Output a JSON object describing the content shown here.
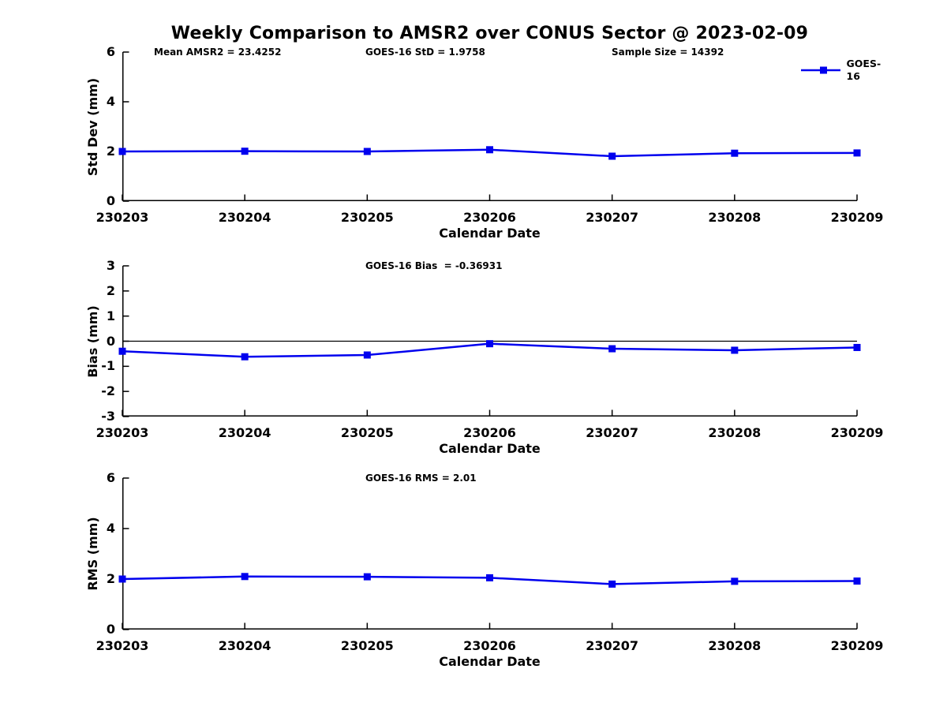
{
  "figure": {
    "title": "Weekly Comparison to AMSR2 over CONUS Sector @ 2023-02-09",
    "background": "#FFFFFF",
    "axis_color": "#000000",
    "legend": {
      "label": "GOES-16",
      "series_color": "#0000EE"
    }
  },
  "chart_data": [
    {
      "type": "line",
      "x": [
        "230203",
        "230204",
        "230205",
        "230206",
        "230207",
        "230208",
        "230209"
      ],
      "series": [
        {
          "name": "GOES-16",
          "values": [
            2.0,
            2.01,
            2.0,
            2.07,
            1.81,
            1.93,
            1.94
          ]
        }
      ],
      "annotations": [
        {
          "text": "Mean AMSR2 = 23.4252"
        },
        {
          "text": "GOES-16 StD = 1.9758"
        },
        {
          "text": "Sample Size = 14392"
        }
      ],
      "ylabel": "Std Dev (mm)",
      "xlabel": "Calendar Date",
      "ylim": [
        0,
        6
      ],
      "yticks": [
        0,
        2,
        4,
        6
      ],
      "zero_line": false,
      "grid": false,
      "legend_position": "top-right-outside"
    },
    {
      "type": "line",
      "x": [
        "230203",
        "230204",
        "230205",
        "230206",
        "230207",
        "230208",
        "230209"
      ],
      "series": [
        {
          "name": "GOES-16",
          "values": [
            -0.4,
            -0.62,
            -0.55,
            -0.1,
            -0.3,
            -0.36,
            -0.25
          ]
        }
      ],
      "annotations": [
        {
          "text": "GOES-16 Bias  = -0.36931"
        }
      ],
      "ylabel": "Bias (mm)",
      "xlabel": "Calendar Date",
      "ylim": [
        -3,
        3
      ],
      "yticks": [
        -3,
        -2,
        -1,
        0,
        1,
        2,
        3
      ],
      "zero_line": true,
      "grid": false
    },
    {
      "type": "line",
      "x": [
        "230203",
        "230204",
        "230205",
        "230206",
        "230207",
        "230208",
        "230209"
      ],
      "series": [
        {
          "name": "GOES-16",
          "values": [
            2.0,
            2.1,
            2.09,
            2.05,
            1.8,
            1.91,
            1.92
          ]
        }
      ],
      "annotations": [
        {
          "text": "GOES-16 RMS = 2.01"
        }
      ],
      "ylabel": "RMS (mm)",
      "xlabel": "Calendar Date",
      "ylim": [
        0,
        6
      ],
      "yticks": [
        0,
        2,
        4,
        6
      ],
      "zero_line": false,
      "grid": false
    }
  ]
}
